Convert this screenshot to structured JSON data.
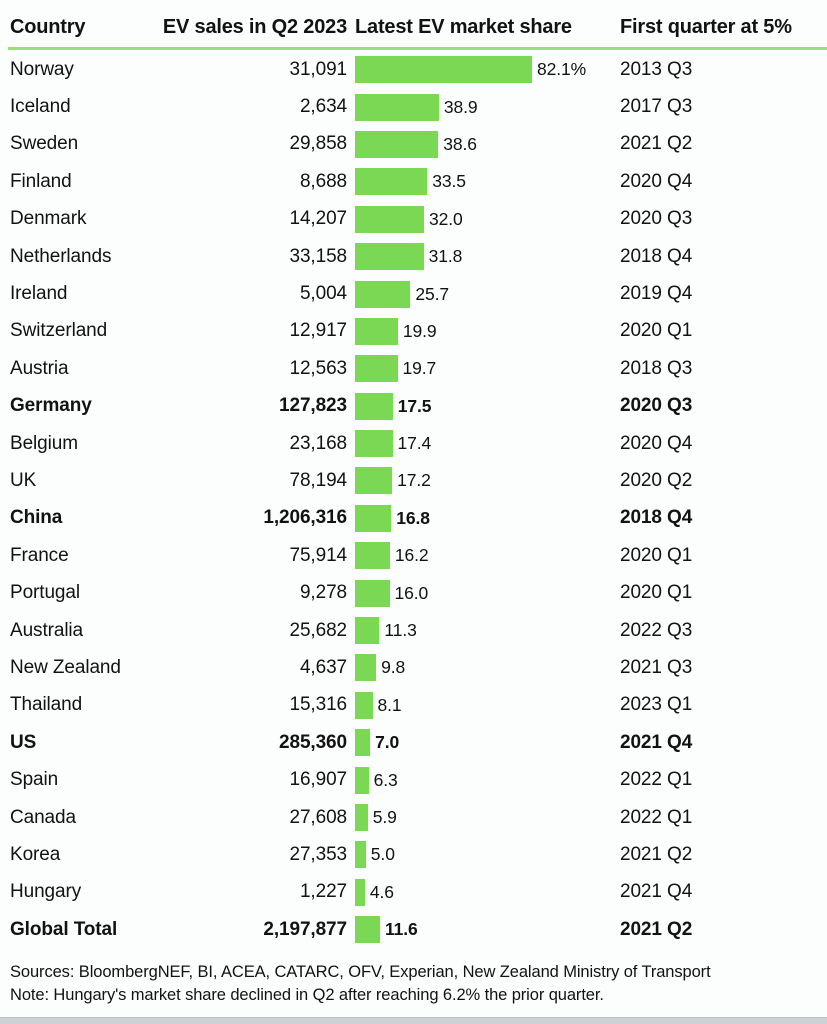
{
  "colors": {
    "bar_green": "#7bd854",
    "rule_green": "#95e378",
    "text": "#121212"
  },
  "table": {
    "columns": [
      "Country",
      "EV sales in Q2 2023",
      "Latest EV market share",
      "First quarter at 5%"
    ],
    "rows": [
      {
        "country": "Norway",
        "sales": "31,091",
        "share": 82.1,
        "share_label": "82.1%",
        "quarter": "2013 Q3",
        "bold": false
      },
      {
        "country": "Iceland",
        "sales": "2,634",
        "share": 38.9,
        "share_label": "38.9",
        "quarter": "2017 Q3",
        "bold": false
      },
      {
        "country": "Sweden",
        "sales": "29,858",
        "share": 38.6,
        "share_label": "38.6",
        "quarter": "2021 Q2",
        "bold": false
      },
      {
        "country": "Finland",
        "sales": "8,688",
        "share": 33.5,
        "share_label": "33.5",
        "quarter": "2020 Q4",
        "bold": false
      },
      {
        "country": "Denmark",
        "sales": "14,207",
        "share": 32.0,
        "share_label": "32.0",
        "quarter": "2020 Q3",
        "bold": false
      },
      {
        "country": "Netherlands",
        "sales": "33,158",
        "share": 31.8,
        "share_label": "31.8",
        "quarter": "2018 Q4",
        "bold": false
      },
      {
        "country": "Ireland",
        "sales": "5,004",
        "share": 25.7,
        "share_label": "25.7",
        "quarter": "2019 Q4",
        "bold": false
      },
      {
        "country": "Switzerland",
        "sales": "12,917",
        "share": 19.9,
        "share_label": "19.9",
        "quarter": "2020 Q1",
        "bold": false
      },
      {
        "country": "Austria",
        "sales": "12,563",
        "share": 19.7,
        "share_label": "19.7",
        "quarter": "2018 Q3",
        "bold": false
      },
      {
        "country": "Germany",
        "sales": "127,823",
        "share": 17.5,
        "share_label": "17.5",
        "quarter": "2020 Q3",
        "bold": true
      },
      {
        "country": "Belgium",
        "sales": "23,168",
        "share": 17.4,
        "share_label": "17.4",
        "quarter": "2020 Q4",
        "bold": false
      },
      {
        "country": "UK",
        "sales": "78,194",
        "share": 17.2,
        "share_label": "17.2",
        "quarter": "2020 Q2",
        "bold": false
      },
      {
        "country": "China",
        "sales": "1,206,316",
        "share": 16.8,
        "share_label": "16.8",
        "quarter": "2018 Q4",
        "bold": true
      },
      {
        "country": "France",
        "sales": "75,914",
        "share": 16.2,
        "share_label": "16.2",
        "quarter": "2020 Q1",
        "bold": false
      },
      {
        "country": "Portugal",
        "sales": "9,278",
        "share": 16.0,
        "share_label": "16.0",
        "quarter": "2020 Q1",
        "bold": false
      },
      {
        "country": "Australia",
        "sales": "25,682",
        "share": 11.3,
        "share_label": "11.3",
        "quarter": "2022 Q3",
        "bold": false
      },
      {
        "country": "New Zealand",
        "sales": "4,637",
        "share": 9.8,
        "share_label": "9.8",
        "quarter": "2021 Q3",
        "bold": false
      },
      {
        "country": "Thailand",
        "sales": "15,316",
        "share": 8.1,
        "share_label": "8.1",
        "quarter": "2023 Q1",
        "bold": false
      },
      {
        "country": "US",
        "sales": "285,360",
        "share": 7.0,
        "share_label": "7.0",
        "quarter": "2021 Q4",
        "bold": true
      },
      {
        "country": "Spain",
        "sales": "16,907",
        "share": 6.3,
        "share_label": "6.3",
        "quarter": "2022 Q1",
        "bold": false
      },
      {
        "country": "Canada",
        "sales": "27,608",
        "share": 5.9,
        "share_label": "5.9",
        "quarter": "2022 Q1",
        "bold": false
      },
      {
        "country": "Korea",
        "sales": "27,353",
        "share": 5.0,
        "share_label": "5.0",
        "quarter": "2021 Q2",
        "bold": false
      },
      {
        "country": "Hungary",
        "sales": "1,227",
        "share": 4.6,
        "share_label": "4.6",
        "quarter": "2021 Q4",
        "bold": false
      },
      {
        "country": "Global Total",
        "sales": "2,197,877",
        "share": 11.6,
        "share_label": "11.6",
        "quarter": "2021 Q2",
        "bold": true
      }
    ]
  },
  "footer": {
    "sources": "Sources: BloombergNEF, BI, ACEA, CATARC, OFV, Experian, New Zealand Ministry of Transport",
    "note": "Note: Hungary's market share declined in Q2 after reaching 6.2% the prior quarter."
  },
  "chart_data": {
    "type": "bar",
    "orientation": "horizontal",
    "title": "",
    "xlabel": "Latest EV market share (%)",
    "ylabel": "Country",
    "xlim": [
      0,
      85
    ],
    "grid": false,
    "legend_position": "none",
    "value_labels": true,
    "categories": [
      "Norway",
      "Iceland",
      "Sweden",
      "Finland",
      "Denmark",
      "Netherlands",
      "Ireland",
      "Switzerland",
      "Austria",
      "Germany",
      "Belgium",
      "UK",
      "China",
      "France",
      "Portugal",
      "Australia",
      "New Zealand",
      "Thailand",
      "US",
      "Spain",
      "Canada",
      "Korea",
      "Hungary",
      "Global Total"
    ],
    "series": [
      {
        "name": "EV sales in Q2 2023",
        "values": [
          31091,
          2634,
          29858,
          8688,
          14207,
          33158,
          5004,
          12917,
          12563,
          127823,
          23168,
          78194,
          1206316,
          75914,
          9278,
          25682,
          4637,
          15316,
          285360,
          16907,
          27608,
          27353,
          1227,
          2197877
        ]
      },
      {
        "name": "Latest EV market share (%)",
        "values": [
          82.1,
          38.9,
          38.6,
          33.5,
          32.0,
          31.8,
          25.7,
          19.9,
          19.7,
          17.5,
          17.4,
          17.2,
          16.8,
          16.2,
          16.0,
          11.3,
          9.8,
          8.1,
          7.0,
          6.3,
          5.9,
          5.0,
          4.6,
          11.6
        ]
      },
      {
        "name": "First quarter at 5%",
        "values": [
          "2013 Q3",
          "2017 Q3",
          "2021 Q2",
          "2020 Q4",
          "2020 Q3",
          "2018 Q4",
          "2019 Q4",
          "2020 Q1",
          "2018 Q3",
          "2020 Q3",
          "2020 Q4",
          "2020 Q2",
          "2018 Q4",
          "2020 Q1",
          "2020 Q1",
          "2022 Q3",
          "2021 Q3",
          "2023 Q1",
          "2021 Q4",
          "2022 Q1",
          "2022 Q1",
          "2021 Q2",
          "2021 Q4",
          "2021 Q2"
        ]
      }
    ],
    "emphasized_categories": [
      "Germany",
      "China",
      "US",
      "Global Total"
    ]
  }
}
